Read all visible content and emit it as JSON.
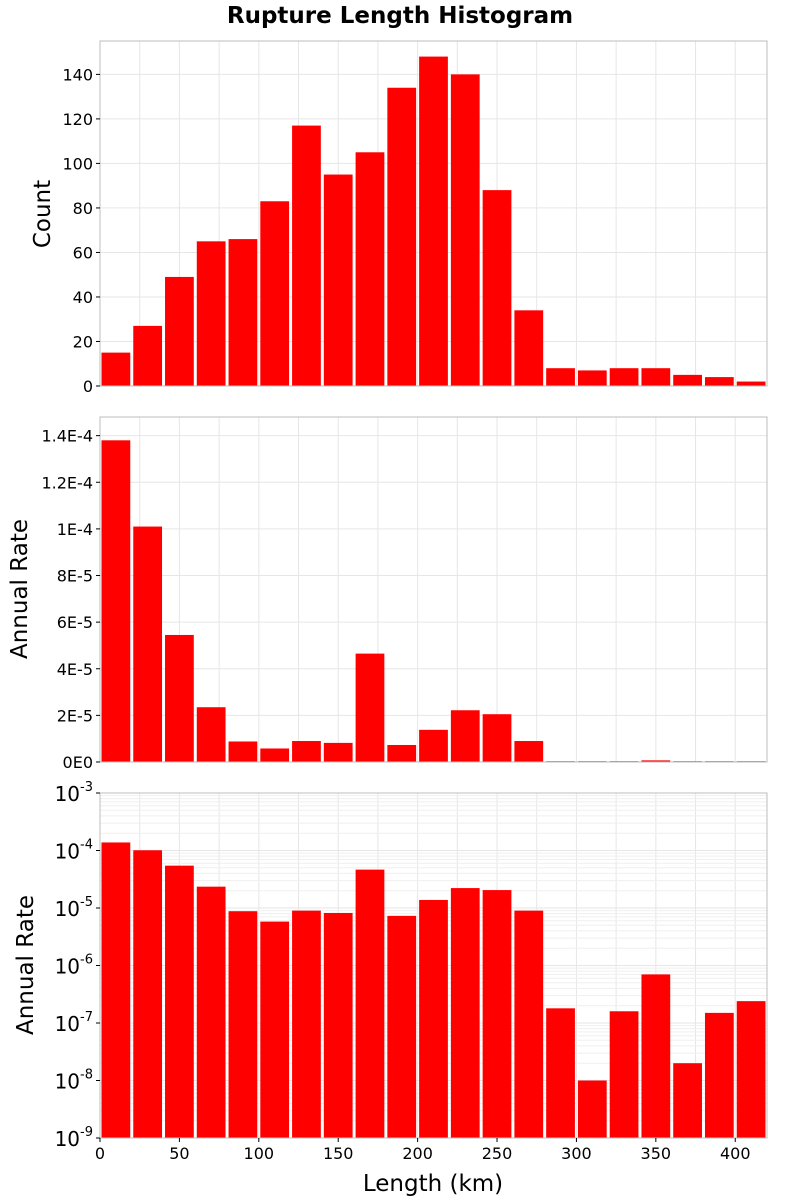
{
  "chart_data": [
    {
      "type": "bar",
      "title": "Rupture Length Histogram",
      "xlabel": "",
      "ylabel": "Count",
      "bin_width": 20,
      "x": [
        10,
        30,
        50,
        70,
        90,
        110,
        130,
        150,
        170,
        190,
        210,
        230,
        250,
        270,
        290,
        310,
        330,
        350,
        370,
        390,
        410
      ],
      "values": [
        15,
        27,
        49,
        65,
        66,
        83,
        117,
        95,
        105,
        134,
        148,
        140,
        88,
        34,
        8,
        7,
        8,
        8,
        5,
        4,
        2
      ],
      "xlim": [
        0,
        420
      ],
      "ylim": [
        0,
        155
      ],
      "yticks": [
        0,
        20,
        40,
        60,
        80,
        100,
        120,
        140
      ],
      "ytick_labels": [
        "0",
        "20",
        "40",
        "60",
        "80",
        "100",
        "120",
        "140"
      ],
      "color": "#ff0000",
      "grid": true
    },
    {
      "type": "bar",
      "title": "",
      "xlabel": "",
      "ylabel": "Annual Rate",
      "bin_width": 20,
      "x": [
        10,
        30,
        50,
        70,
        90,
        110,
        130,
        150,
        170,
        190,
        210,
        230,
        250,
        270,
        290,
        310,
        330,
        350,
        370,
        390,
        410
      ],
      "values": [
        0.000138,
        0.000101,
        5.45e-05,
        2.35e-05,
        8.8e-06,
        5.8e-06,
        9e-06,
        8.2e-06,
        4.65e-05,
        7.3e-06,
        1.38e-05,
        2.22e-05,
        2.05e-05,
        9e-06,
        1.8e-07,
        1e-08,
        1.6e-07,
        7e-07,
        2e-08,
        1.5e-07,
        2.4e-07
      ],
      "xlim": [
        0,
        420
      ],
      "ylim": [
        0,
        0.000148
      ],
      "yticks": [
        0,
        2e-05,
        4e-05,
        6e-05,
        8e-05,
        0.0001,
        0.00012,
        0.00014
      ],
      "ytick_labels": [
        "0E0",
        "2E-5",
        "4E-5",
        "6E-5",
        "8E-5",
        "1E-4",
        "1.2E-4",
        "1.4E-4"
      ],
      "color": "#ff0000",
      "grid": true
    },
    {
      "type": "bar",
      "title": "",
      "xlabel": "Length (km)",
      "ylabel": "Annual Rate",
      "y_scale": "log",
      "bin_width": 20,
      "x": [
        10,
        30,
        50,
        70,
        90,
        110,
        130,
        150,
        170,
        190,
        210,
        230,
        250,
        270,
        290,
        310,
        330,
        350,
        370,
        390,
        410
      ],
      "values": [
        0.000138,
        0.000101,
        5.45e-05,
        2.35e-05,
        8.8e-06,
        5.8e-06,
        9e-06,
        8.2e-06,
        4.65e-05,
        7.3e-06,
        1.38e-05,
        2.22e-05,
        2.05e-05,
        9e-06,
        1.8e-07,
        1e-08,
        1.6e-07,
        7e-07,
        2e-08,
        1.5e-07,
        2.4e-07
      ],
      "xlim": [
        0,
        420
      ],
      "xticks": [
        0,
        50,
        100,
        150,
        200,
        250,
        300,
        350,
        400
      ],
      "xtick_labels": [
        "0",
        "50",
        "100",
        "150",
        "200",
        "250",
        "300",
        "350",
        "400"
      ],
      "ylim": [
        1e-09,
        0.001
      ],
      "yticks": [
        1e-09,
        1e-08,
        1e-07,
        1e-06,
        1e-05,
        0.0001,
        0.001
      ],
      "ytick_labels": [
        {
          "base": "10",
          "exp": "-9"
        },
        {
          "base": "10",
          "exp": "-8"
        },
        {
          "base": "10",
          "exp": "-7"
        },
        {
          "base": "10",
          "exp": "-6"
        },
        {
          "base": "10",
          "exp": "-5"
        },
        {
          "base": "10",
          "exp": "-4"
        },
        {
          "base": "10",
          "exp": "-3"
        }
      ],
      "color": "#ff0000",
      "grid": true
    }
  ]
}
